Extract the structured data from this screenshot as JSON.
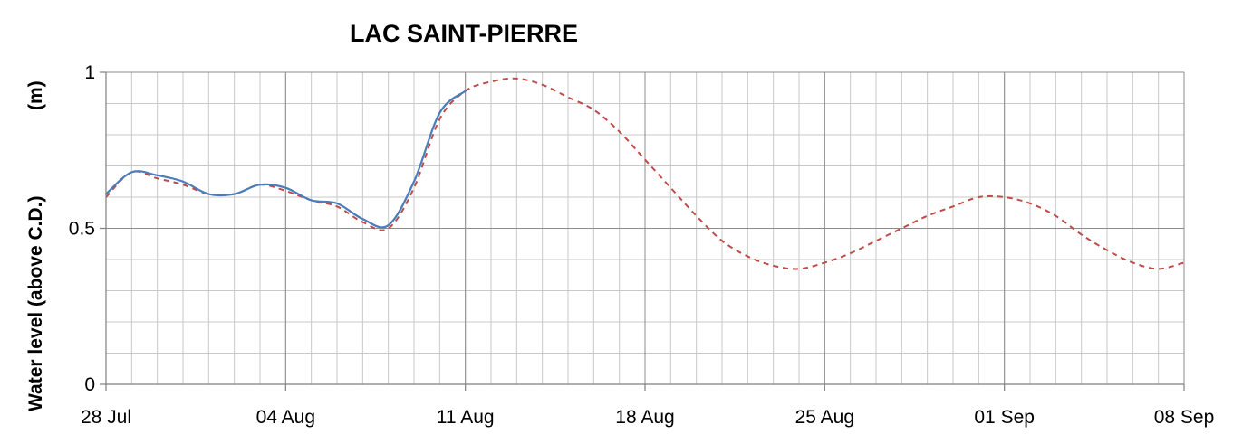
{
  "chart_data": {
    "type": "line",
    "title": "LAC SAINT-PIERRE",
    "ylabel": "Water level (above C.D.)",
    "yunit": "(m)",
    "xlabel": "",
    "ylim": [
      0,
      1
    ],
    "yticks": [
      0,
      0.5,
      1
    ],
    "ytick_labels": [
      "0",
      "0.5",
      "1"
    ],
    "xlim": [
      "2024-07-28",
      "2024-09-08"
    ],
    "xticks": [
      "2024-07-28",
      "2024-08-04",
      "2024-08-11",
      "2024-08-18",
      "2024-08-25",
      "2024-09-01",
      "2024-09-08"
    ],
    "xtick_labels": [
      "28 Jul",
      "04 Aug",
      "11 Aug",
      "18 Aug",
      "25 Aug",
      "01 Sep",
      "08 Sep"
    ],
    "grid": true,
    "minor_grid": "daily vertical lines, 0.1 m horizontal lines",
    "legend": "none",
    "series": [
      {
        "style": "solid",
        "color": "#4a7ebb",
        "points": [
          [
            "2024-07-28",
            0.61
          ],
          [
            "2024-07-29",
            0.68
          ],
          [
            "2024-07-30",
            0.67
          ],
          [
            "2024-07-31",
            0.65
          ],
          [
            "2024-08-01",
            0.61
          ],
          [
            "2024-08-02",
            0.61
          ],
          [
            "2024-08-03",
            0.64
          ],
          [
            "2024-08-04",
            0.63
          ],
          [
            "2024-08-05",
            0.59
          ],
          [
            "2024-08-06",
            0.58
          ],
          [
            "2024-08-07",
            0.53
          ],
          [
            "2024-08-08",
            0.51
          ],
          [
            "2024-08-09",
            0.65
          ],
          [
            "2024-08-10",
            0.87
          ],
          [
            "2024-08-11",
            0.94
          ]
        ]
      },
      {
        "style": "dashed",
        "color": "#be4b48",
        "points": [
          [
            "2024-07-28",
            0.6
          ],
          [
            "2024-07-29",
            0.68
          ],
          [
            "2024-07-30",
            0.66
          ],
          [
            "2024-07-31",
            0.64
          ],
          [
            "2024-08-01",
            0.61
          ],
          [
            "2024-08-02",
            0.61
          ],
          [
            "2024-08-03",
            0.64
          ],
          [
            "2024-08-04",
            0.62
          ],
          [
            "2024-08-05",
            0.59
          ],
          [
            "2024-08-06",
            0.57
          ],
          [
            "2024-08-07",
            0.52
          ],
          [
            "2024-08-08",
            0.5
          ],
          [
            "2024-08-09",
            0.63
          ],
          [
            "2024-08-10",
            0.85
          ],
          [
            "2024-08-11",
            0.94
          ],
          [
            "2024-08-12",
            0.97
          ],
          [
            "2024-08-13",
            0.98
          ],
          [
            "2024-08-14",
            0.96
          ],
          [
            "2024-08-15",
            0.92
          ],
          [
            "2024-08-16",
            0.88
          ],
          [
            "2024-08-17",
            0.81
          ],
          [
            "2024-08-18",
            0.72
          ],
          [
            "2024-08-19",
            0.63
          ],
          [
            "2024-08-20",
            0.54
          ],
          [
            "2024-08-21",
            0.46
          ],
          [
            "2024-08-22",
            0.41
          ],
          [
            "2024-08-23",
            0.38
          ],
          [
            "2024-08-24",
            0.37
          ],
          [
            "2024-08-25",
            0.39
          ],
          [
            "2024-08-26",
            0.42
          ],
          [
            "2024-08-27",
            0.46
          ],
          [
            "2024-08-28",
            0.5
          ],
          [
            "2024-08-29",
            0.54
          ],
          [
            "2024-08-30",
            0.57
          ],
          [
            "2024-08-31",
            0.6
          ],
          [
            "2024-09-01",
            0.6
          ],
          [
            "2024-09-02",
            0.58
          ],
          [
            "2024-09-03",
            0.54
          ],
          [
            "2024-09-04",
            0.48
          ],
          [
            "2024-09-05",
            0.43
          ],
          [
            "2024-09-06",
            0.39
          ],
          [
            "2024-09-07",
            0.37
          ],
          [
            "2024-09-08",
            0.39
          ]
        ]
      }
    ]
  }
}
